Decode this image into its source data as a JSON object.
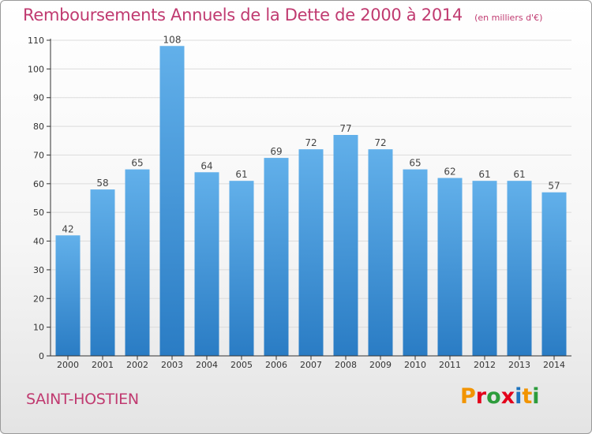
{
  "header": {
    "title": "Remboursements Annuels de la Dette de 2000 à 2014",
    "subtitle": "(en milliers d'€)"
  },
  "footer": {
    "commune": "SAINT-HOSTIEN",
    "logo_text": "Proxiti",
    "logo_colors": [
      "#f29400",
      "#e3001b",
      "#2d9c3c",
      "#e3001b",
      "#1e73be",
      "#f29400",
      "#2d9c3c"
    ]
  },
  "colors": {
    "title": "#c03a70",
    "bar_top": "#62b0ea",
    "bar_bottom": "#2a7cc4",
    "grid": "#dcdcdc",
    "axis": "#333333"
  },
  "chart_data": {
    "type": "bar",
    "categories": [
      "2000",
      "2001",
      "2002",
      "2003",
      "2004",
      "2005",
      "2006",
      "2007",
      "2008",
      "2009",
      "2010",
      "2011",
      "2012",
      "2013",
      "2014"
    ],
    "values": [
      42,
      58,
      65,
      108,
      64,
      61,
      69,
      72,
      77,
      72,
      65,
      62,
      61,
      61,
      57
    ],
    "ylim": [
      0,
      110
    ],
    "yticks": [
      0,
      10,
      20,
      30,
      40,
      50,
      60,
      70,
      80,
      90,
      100,
      110
    ],
    "grid": true,
    "data_labels": true
  }
}
